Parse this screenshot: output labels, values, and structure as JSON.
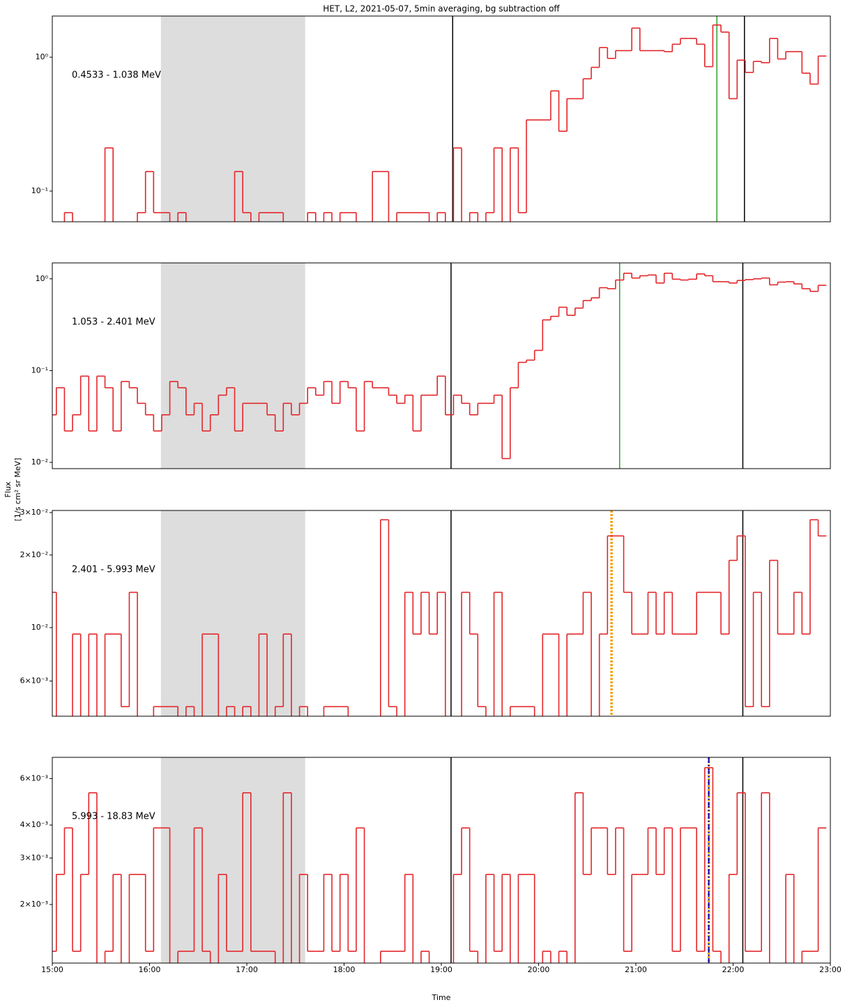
{
  "chart_data": {
    "type": "step",
    "title": "HET, L2, 2021-05-07, 5min averaging, bg subtraction off",
    "xlabel": "Time",
    "ylabel": [
      "Flux",
      "[1/s cm² sr MeV]"
    ],
    "log_scale": true,
    "xlim": [
      "15:00",
      "23:00"
    ],
    "xticks": [
      "15:00",
      "16:00",
      "17:00",
      "18:00",
      "19:00",
      "20:00",
      "21:00",
      "22:00",
      "23:00"
    ],
    "shaded_span": [
      "16:07",
      "17:36"
    ],
    "shaded_color": "#dddddd",
    "x": [
      "15:00",
      "15:05",
      "15:10",
      "15:15",
      "15:20",
      "15:25",
      "15:30",
      "15:35",
      "15:40",
      "15:45",
      "15:50",
      "15:55",
      "16:00",
      "16:05",
      "16:10",
      "16:15",
      "16:20",
      "16:25",
      "16:30",
      "16:35",
      "16:40",
      "16:45",
      "16:50",
      "16:55",
      "17:00",
      "17:05",
      "17:10",
      "17:15",
      "17:20",
      "17:25",
      "17:30",
      "17:35",
      "17:40",
      "17:45",
      "17:50",
      "17:55",
      "18:00",
      "18:05",
      "18:10",
      "18:15",
      "18:20",
      "18:25",
      "18:30",
      "18:35",
      "18:40",
      "18:45",
      "18:50",
      "18:55",
      "19:00",
      "19:05",
      "19:10",
      "19:15",
      "19:20",
      "19:25",
      "19:30",
      "19:35",
      "19:40",
      "19:45",
      "19:50",
      "19:55",
      "20:00",
      "20:05",
      "20:10",
      "20:15",
      "20:20",
      "20:25",
      "20:30",
      "20:35",
      "20:40",
      "20:45",
      "20:50",
      "20:55",
      "21:00",
      "21:05",
      "21:10",
      "21:15",
      "21:20",
      "21:25",
      "21:30",
      "21:35",
      "21:40",
      "21:45",
      "21:50",
      "21:55",
      "22:00",
      "22:05",
      "22:10",
      "22:15",
      "22:20",
      "22:25",
      "22:30",
      "22:35",
      "22:40",
      "22:45",
      "22:50",
      "22:55"
    ],
    "panels": [
      {
        "annotation": "0.4533 - 1.038 MeV",
        "ylim": [
          0.059,
          2.03
        ],
        "yticks": [
          {
            "value": 0.1,
            "label": "10⁻¹"
          },
          {
            "value": 1,
            "label": "10⁰"
          }
        ],
        "vlines": [
          {
            "x": "19:07",
            "color": "#000000",
            "style": "solid"
          },
          {
            "x": "21:50",
            "color": "#2ca02c",
            "style": "solid"
          },
          {
            "x": "22:07",
            "color": "#000000",
            "style": "solid"
          }
        ],
        "series": [
          {
            "color": "#e3262a",
            "values": [
              null,
              null,
              0.069,
              null,
              null,
              null,
              null,
              0.21,
              null,
              null,
              null,
              0.069,
              0.14,
              0.069,
              0.069,
              null,
              0.069,
              null,
              null,
              null,
              null,
              null,
              null,
              0.14,
              0.069,
              null,
              0.069,
              0.069,
              0.069,
              null,
              null,
              null,
              0.069,
              null,
              0.069,
              null,
              0.069,
              0.069,
              null,
              null,
              0.14,
              0.14,
              null,
              0.069,
              0.069,
              0.069,
              0.069,
              null,
              0.069,
              null,
              0.21,
              null,
              0.069,
              null,
              0.069,
              0.21,
              null,
              0.21,
              0.069,
              0.34,
              0.34,
              0.34,
              0.56,
              0.28,
              0.49,
              0.49,
              0.69,
              0.84,
              1.18,
              0.98,
              1.12,
              1.12,
              1.65,
              1.12,
              1.12,
              1.12,
              1.1,
              1.25,
              1.38,
              1.38,
              1.25,
              0.85,
              1.74,
              1.54,
              0.49,
              0.95,
              0.77,
              0.93,
              0.91,
              1.38,
              0.97,
              1.1,
              1.1,
              0.76,
              0.63,
              1.02
            ]
          }
        ]
      },
      {
        "annotation": "1.053 - 2.401 MeV",
        "ylim": [
          0.00855,
          1.49
        ],
        "yticks": [
          {
            "value": 0.01,
            "label": "10⁻²"
          },
          {
            "value": 0.1,
            "label": "10⁻¹"
          },
          {
            "value": 1,
            "label": "10⁰"
          }
        ],
        "vlines": [
          {
            "x": "19:06",
            "color": "#000000",
            "style": "solid"
          },
          {
            "x": "20:50",
            "color": "#2ca02c",
            "style": "solid"
          },
          {
            "x": "22:06",
            "color": "#000000",
            "style": "solid"
          }
        ],
        "series": [
          {
            "color": "#e3262a",
            "values": [
              0.033,
              0.065,
              0.022,
              0.033,
              0.087,
              0.022,
              0.087,
              0.065,
              0.022,
              0.076,
              0.065,
              0.044,
              0.033,
              0.022,
              0.033,
              0.076,
              0.065,
              0.033,
              0.044,
              0.022,
              0.033,
              0.054,
              0.065,
              0.022,
              0.044,
              0.044,
              0.044,
              0.033,
              0.022,
              0.044,
              0.033,
              0.044,
              0.065,
              0.054,
              0.076,
              0.044,
              0.076,
              0.065,
              0.022,
              0.076,
              0.065,
              0.065,
              0.054,
              0.044,
              0.054,
              0.022,
              0.054,
              0.054,
              0.087,
              0.033,
              0.054,
              0.044,
              0.033,
              0.044,
              0.044,
              0.054,
              0.011,
              0.065,
              0.123,
              0.13,
              0.166,
              0.357,
              0.39,
              0.49,
              0.4,
              0.48,
              0.58,
              0.62,
              0.8,
              0.78,
              0.97,
              1.15,
              1.02,
              1.08,
              1.1,
              0.9,
              1.15,
              0.99,
              0.97,
              0.99,
              1.13,
              1.08,
              0.93,
              0.93,
              0.9,
              0.96,
              0.98,
              1.0,
              1.02,
              0.86,
              0.92,
              0.93,
              0.88,
              0.78,
              0.73,
              0.85
            ]
          }
        ]
      },
      {
        "annotation": "2.401 - 5.993 MeV",
        "ylim": [
          0.00429,
          0.0306
        ],
        "yticks": [
          {
            "value": 0.006,
            "label": "6×10⁻³"
          },
          {
            "value": 0.01,
            "label": "10⁻²"
          },
          {
            "value": 0.02,
            "label": "2×10⁻²"
          },
          {
            "value": 0.03,
            "label": "3×10⁻²"
          }
        ],
        "vlines": [
          {
            "x": "19:06",
            "color": "#000000",
            "style": "solid"
          },
          {
            "x": "20:45",
            "color": "#f5a00a",
            "style": "dotted"
          },
          {
            "x": "22:06",
            "color": "#000000",
            "style": "solid"
          }
        ],
        "series": [
          {
            "color": "#e3262a",
            "values": [
              0.014,
              null,
              null,
              0.0094,
              null,
              0.0094,
              null,
              0.0094,
              0.0094,
              0.0047,
              0.014,
              null,
              null,
              0.0047,
              0.0047,
              0.0047,
              null,
              0.0047,
              null,
              0.0094,
              0.0094,
              null,
              0.0047,
              null,
              0.0047,
              null,
              0.0094,
              null,
              0.0047,
              0.0094,
              null,
              0.0047,
              null,
              null,
              0.0047,
              0.0047,
              0.0047,
              null,
              null,
              null,
              null,
              0.028,
              0.0047,
              null,
              0.014,
              0.0094,
              0.014,
              0.0094,
              0.014,
              null,
              null,
              0.014,
              0.0094,
              0.0047,
              null,
              0.014,
              null,
              0.0047,
              0.0047,
              0.0047,
              null,
              0.0094,
              0.0094,
              null,
              0.0094,
              0.0094,
              0.014,
              null,
              0.0094,
              0.024,
              0.024,
              0.014,
              0.0094,
              0.0094,
              0.014,
              0.0094,
              0.014,
              0.0094,
              0.0094,
              0.0094,
              0.014,
              0.014,
              0.014,
              0.0094,
              0.019,
              0.024,
              0.0047,
              0.014,
              0.0047,
              0.019,
              0.0094,
              0.0094,
              0.014,
              0.0094,
              0.028,
              0.024
            ]
          }
        ]
      },
      {
        "annotation": "5.993 - 18.83 MeV",
        "ylim": [
          0.0012,
          0.00722
        ],
        "yticks": [
          {
            "value": 0.002,
            "label": "2×10⁻³"
          },
          {
            "value": 0.003,
            "label": "3×10⁻³"
          },
          {
            "value": 0.004,
            "label": "4×10⁻³"
          },
          {
            "value": 0.006,
            "label": "6×10⁻³"
          }
        ],
        "vlines": [
          {
            "x": "19:06",
            "color": "#000000",
            "style": "solid"
          },
          {
            "x": "21:45",
            "color": "#f5a00a",
            "style": "dotted"
          },
          {
            "x": "21:45",
            "color": "#0000cc",
            "style": "dashdot"
          },
          {
            "x": "22:06",
            "color": "#000000",
            "style": "solid"
          }
        ],
        "series": [
          {
            "color": "#e3262a",
            "values": [
              0.00133,
              0.0026,
              0.0039,
              0.00133,
              0.0026,
              0.0053,
              null,
              0.00133,
              0.0026,
              null,
              0.0026,
              0.0026,
              0.00133,
              0.0039,
              0.0039,
              null,
              0.00133,
              0.00133,
              0.0039,
              0.00133,
              null,
              0.0026,
              0.00133,
              0.00133,
              0.0053,
              0.00133,
              0.00133,
              0.00133,
              null,
              0.0053,
              null,
              0.0026,
              0.00133,
              0.00133,
              0.0026,
              0.00133,
              0.0026,
              0.00133,
              0.0039,
              null,
              null,
              0.00133,
              0.00133,
              0.00133,
              0.0026,
              null,
              0.00133,
              null,
              null,
              null,
              0.0026,
              0.0039,
              0.00133,
              null,
              0.0026,
              0.00133,
              0.0026,
              null,
              0.0026,
              0.0026,
              null,
              0.00133,
              null,
              0.00133,
              null,
              0.0053,
              0.0026,
              0.0039,
              0.0039,
              0.0026,
              0.0039,
              0.00133,
              0.0026,
              0.0026,
              0.0039,
              0.0026,
              0.0039,
              0.00133,
              0.0039,
              0.0039,
              0.00133,
              0.0066,
              0.00133,
              null,
              0.0026,
              0.0053,
              0.00133,
              0.00133,
              0.0053,
              null,
              null,
              0.0026,
              null,
              0.00133,
              0.00133,
              0.0039
            ]
          }
        ]
      }
    ]
  }
}
